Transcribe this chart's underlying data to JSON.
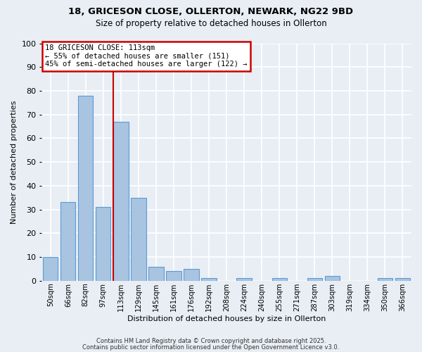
{
  "title": "18, GRICESON CLOSE, OLLERTON, NEWARK, NG22 9BD",
  "subtitle": "Size of property relative to detached houses in Ollerton",
  "xlabel": "Distribution of detached houses by size in Ollerton",
  "ylabel": "Number of detached properties",
  "bar_labels": [
    "50sqm",
    "66sqm",
    "82sqm",
    "97sqm",
    "113sqm",
    "129sqm",
    "145sqm",
    "161sqm",
    "176sqm",
    "192sqm",
    "208sqm",
    "224sqm",
    "240sqm",
    "255sqm",
    "271sqm",
    "287sqm",
    "303sqm",
    "319sqm",
    "334sqm",
    "350sqm",
    "366sqm"
  ],
  "bar_values": [
    10,
    33,
    78,
    31,
    67,
    35,
    6,
    4,
    5,
    1,
    0,
    1,
    0,
    1,
    0,
    1,
    2,
    0,
    0,
    1,
    1
  ],
  "bar_color": "#a8c4e0",
  "bar_edge_color": "#5b9bd5",
  "vline_idx": 4,
  "vline_color": "#cc0000",
  "annotation_title": "18 GRICESON CLOSE: 113sqm",
  "annotation_line2": "← 55% of detached houses are smaller (151)",
  "annotation_line3": "45% of semi-detached houses are larger (122) →",
  "annotation_box_color": "#ffffff",
  "annotation_box_edge": "#cc0000",
  "ylim": [
    0,
    100
  ],
  "yticks": [
    0,
    10,
    20,
    30,
    40,
    50,
    60,
    70,
    80,
    90,
    100
  ],
  "background_color": "#e8eef4",
  "grid_color": "#ffffff",
  "footnote1": "Contains HM Land Registry data © Crown copyright and database right 2025.",
  "footnote2": "Contains public sector information licensed under the Open Government Licence v3.0."
}
